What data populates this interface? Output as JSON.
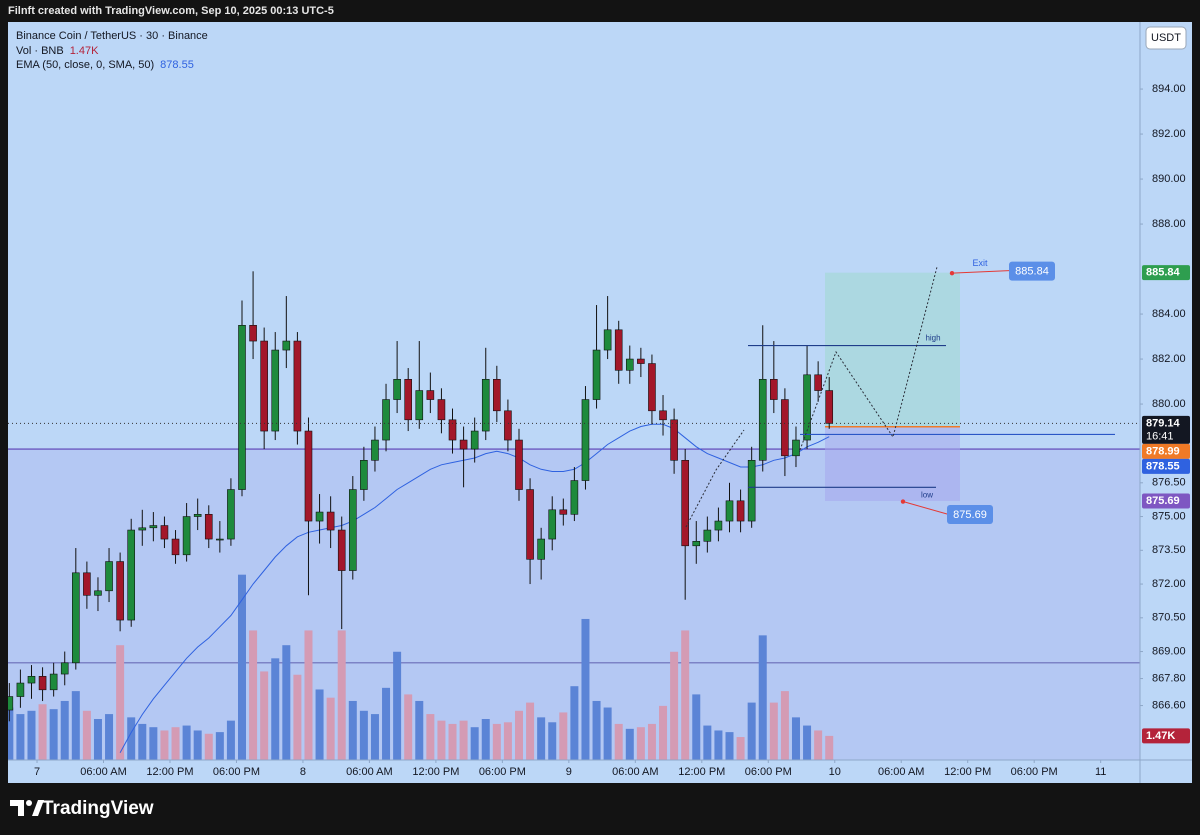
{
  "header_text": "Filnft created with TradingView.com, Sep 10, 2025 00:13 UTC-5",
  "brand": "TradingView",
  "chart_data": {
    "type": "candlestick",
    "symbol": "Binance Coin / TetherUS · 30 · Binance",
    "currency": "USDT",
    "countdown": "16:41",
    "up_color": "#1e8a3c",
    "down_color": "#a3172a",
    "xlim": [
      -2.62,
      99.55
    ],
    "xticks": [
      {
        "value": 0,
        "label": "7"
      },
      {
        "value": 6,
        "label": "06:00 AM"
      },
      {
        "value": 12,
        "label": "12:00 PM"
      },
      {
        "value": 18,
        "label": "06:00 PM"
      },
      {
        "value": 24,
        "label": "8"
      },
      {
        "value": 30,
        "label": "06:00 AM"
      },
      {
        "value": 36,
        "label": "12:00 PM"
      },
      {
        "value": 42,
        "label": "06:00 PM"
      },
      {
        "value": 48,
        "label": "9"
      },
      {
        "value": 54,
        "label": "06:00 AM"
      },
      {
        "value": 60,
        "label": "12:00 PM"
      },
      {
        "value": 66,
        "label": "06:00 PM"
      },
      {
        "value": 72,
        "label": "10"
      },
      {
        "value": 78,
        "label": "06:00 AM"
      },
      {
        "value": 84,
        "label": "12:00 PM"
      },
      {
        "value": 90,
        "label": "06:00 PM"
      },
      {
        "value": 96,
        "label": "11"
      }
    ],
    "ylim": [
      864.18,
      896.98
    ],
    "yticks": [
      {
        "value": 894,
        "label": "894.00"
      },
      {
        "value": 892,
        "label": "892.00"
      },
      {
        "value": 890,
        "label": "890.00"
      },
      {
        "value": 888,
        "label": "888.00"
      },
      {
        "value": 884,
        "label": "884.00"
      },
      {
        "value": 882,
        "label": "882.00"
      },
      {
        "value": 880,
        "label": "880.00"
      },
      {
        "value": 876.5,
        "label": "876.50"
      },
      {
        "value": 875,
        "label": "875.00"
      },
      {
        "value": 873.5,
        "label": "873.50"
      },
      {
        "value": 872,
        "label": "872.00"
      },
      {
        "value": 870.5,
        "label": "870.50"
      },
      {
        "value": 869,
        "label": "869.00"
      },
      {
        "value": 867.8,
        "label": "867.80"
      },
      {
        "value": 866.6,
        "label": "866.60"
      }
    ],
    "grid": false,
    "x": [
      -2.5,
      -1.5,
      -0.5,
      0.5,
      1.5,
      2.5,
      3.5,
      4.5,
      5.5,
      6.5,
      7.5,
      8.5,
      9.5,
      10.5,
      11.5,
      12.5,
      13.5,
      14.5,
      15.5,
      16.5,
      17.5,
      18.5,
      19.5,
      20.5,
      21.5,
      22.5,
      23.5,
      24.5,
      25.5,
      26.5,
      27.5,
      28.5,
      29.5,
      30.5,
      31.5,
      32.5,
      33.5,
      34.5,
      35.5,
      36.5,
      37.5,
      38.5,
      39.5,
      40.5,
      41.5,
      42.5,
      43.5,
      44.5,
      45.5,
      46.5,
      47.5,
      48.5,
      49.5,
      50.5,
      51.5,
      52.5,
      53.5,
      54.5,
      55.5,
      56.5,
      57.5,
      58.5,
      59.5,
      60.5,
      61.5,
      62.5,
      63.5,
      64.5,
      65.5,
      66.5,
      67.5,
      68.5,
      69.5,
      70.5,
      71.5
    ],
    "ohlc": [
      [
        866.4,
        867.6,
        865.9,
        867.0
      ],
      [
        867.0,
        868.2,
        866.5,
        867.6
      ],
      [
        867.6,
        868.4,
        866.9,
        867.9
      ],
      [
        867.9,
        868.3,
        866.8,
        867.3
      ],
      [
        867.3,
        868.5,
        867.0,
        868.0
      ],
      [
        868.0,
        869.0,
        867.5,
        868.5
      ],
      [
        868.5,
        873.6,
        868.2,
        872.5
      ],
      [
        872.5,
        873.0,
        870.9,
        871.5
      ],
      [
        871.5,
        872.3,
        870.8,
        871.7
      ],
      [
        871.7,
        873.6,
        871.2,
        873.0
      ],
      [
        873.0,
        873.4,
        869.9,
        870.4
      ],
      [
        870.4,
        874.9,
        870.1,
        874.4
      ],
      [
        874.4,
        875.3,
        873.7,
        874.5
      ],
      [
        874.5,
        875.2,
        873.9,
        874.6
      ],
      [
        874.6,
        875.0,
        873.6,
        874.0
      ],
      [
        874.0,
        874.4,
        872.9,
        873.3
      ],
      [
        873.3,
        875.6,
        873.0,
        875.0
      ],
      [
        875.0,
        875.8,
        874.4,
        875.1
      ],
      [
        875.1,
        875.5,
        873.6,
        874.0
      ],
      [
        874.0,
        874.8,
        873.4,
        874.0
      ],
      [
        874.0,
        876.7,
        873.7,
        876.2
      ],
      [
        876.2,
        884.6,
        875.9,
        883.5
      ],
      [
        883.5,
        885.9,
        882.0,
        882.8
      ],
      [
        882.8,
        883.4,
        878.0,
        878.8
      ],
      [
        878.8,
        883.2,
        878.4,
        882.4
      ],
      [
        882.4,
        884.8,
        881.6,
        882.8
      ],
      [
        882.8,
        883.2,
        878.2,
        878.8
      ],
      [
        878.8,
        879.4,
        871.5,
        874.8
      ],
      [
        874.8,
        876.0,
        873.8,
        875.2
      ],
      [
        875.2,
        875.9,
        873.6,
        874.4
      ],
      [
        874.4,
        875.0,
        870.0,
        872.6
      ],
      [
        872.6,
        876.8,
        872.2,
        876.2
      ],
      [
        876.2,
        878.1,
        875.7,
        877.5
      ],
      [
        877.5,
        879.0,
        877.0,
        878.4
      ],
      [
        878.4,
        880.9,
        877.9,
        880.2
      ],
      [
        880.2,
        882.8,
        879.6,
        881.1
      ],
      [
        881.1,
        881.6,
        878.8,
        879.3
      ],
      [
        879.3,
        882.8,
        878.9,
        880.6
      ],
      [
        880.6,
        881.4,
        879.6,
        880.2
      ],
      [
        880.2,
        880.7,
        878.7,
        879.3
      ],
      [
        879.3,
        879.8,
        877.8,
        878.4
      ],
      [
        878.4,
        879.0,
        876.3,
        878.0
      ],
      [
        878.0,
        879.4,
        877.4,
        878.8
      ],
      [
        878.8,
        882.5,
        878.4,
        881.1
      ],
      [
        881.1,
        881.7,
        879.2,
        879.7
      ],
      [
        879.7,
        880.2,
        877.9,
        878.4
      ],
      [
        878.4,
        878.9,
        875.7,
        876.2
      ],
      [
        876.2,
        876.7,
        872.0,
        873.1
      ],
      [
        873.1,
        874.5,
        872.2,
        874.0
      ],
      [
        874.0,
        875.9,
        873.5,
        875.3
      ],
      [
        875.3,
        875.8,
        874.6,
        875.1
      ],
      [
        875.1,
        877.2,
        874.8,
        876.6
      ],
      [
        876.6,
        880.8,
        876.2,
        880.2
      ],
      [
        880.2,
        884.4,
        879.8,
        882.4
      ],
      [
        882.4,
        884.8,
        882.0,
        883.3
      ],
      [
        883.3,
        883.7,
        880.9,
        881.5
      ],
      [
        881.5,
        882.6,
        880.9,
        882.0
      ],
      [
        882.0,
        882.5,
        881.2,
        881.8
      ],
      [
        881.8,
        882.2,
        879.1,
        879.7
      ],
      [
        879.7,
        880.4,
        878.6,
        879.3
      ],
      [
        879.3,
        879.8,
        876.9,
        877.5
      ],
      [
        877.5,
        878.0,
        871.3,
        873.7
      ],
      [
        873.7,
        874.8,
        872.9,
        873.9
      ],
      [
        873.9,
        875.0,
        873.4,
        874.4
      ],
      [
        874.4,
        875.4,
        873.9,
        874.8
      ],
      [
        874.8,
        876.5,
        874.3,
        875.7
      ],
      [
        875.7,
        876.2,
        874.3,
        874.8
      ],
      [
        874.8,
        878.1,
        874.5,
        877.5
      ],
      [
        877.5,
        883.5,
        877.0,
        881.1
      ],
      [
        881.1,
        882.8,
        879.6,
        880.2
      ],
      [
        880.2,
        880.7,
        876.8,
        877.7
      ],
      [
        877.7,
        879.0,
        877.2,
        878.4
      ],
      [
        878.4,
        882.6,
        878.0,
        881.3
      ],
      [
        881.3,
        881.9,
        880.1,
        880.6
      ],
      [
        880.6,
        881.2,
        878.9,
        879.14
      ]
    ],
    "volume": {
      "name": "Vol · BNB",
      "ylim": [
        0,
        45000
      ],
      "up_color": "#5b84d6",
      "down_color": "#d49bb4",
      "tag_color": "#b4233a",
      "last_label": "1.47K",
      "values": [
        3200,
        2800,
        3000,
        3400,
        3100,
        3600,
        4200,
        3000,
        2500,
        2800,
        7000,
        2600,
        2200,
        2000,
        1800,
        2000,
        2100,
        1800,
        1600,
        1700,
        2400,
        11300,
        7900,
        5400,
        6200,
        7000,
        5200,
        7900,
        4300,
        3800,
        7900,
        3600,
        3000,
        2800,
        4400,
        6600,
        4000,
        3600,
        2800,
        2400,
        2200,
        2400,
        2000,
        2500,
        2200,
        2300,
        3000,
        3500,
        2600,
        2300,
        2900,
        4500,
        8600,
        3600,
        3200,
        2200,
        1900,
        2000,
        2200,
        3300,
        6600,
        7900,
        4000,
        2100,
        1800,
        1700,
        1400,
        3500,
        7600,
        3500,
        4200,
        2600,
        2100,
        1800,
        1470
      ]
    },
    "ema": {
      "name": "EMA (50, close, 0, SMA, 50)",
      "color": "#2f62e0",
      "values": [
        null,
        null,
        null,
        null,
        null,
        null,
        null,
        null,
        null,
        null,
        864.5,
        865.4,
        866.2,
        866.9,
        867.5,
        868.1,
        868.7,
        869.2,
        869.6,
        870.1,
        870.6,
        871.3,
        872,
        872.6,
        873.2,
        873.7,
        874.1,
        874.3,
        874.4,
        874.5,
        874.6,
        874.8,
        875.1,
        875.4,
        875.8,
        876.2,
        876.5,
        876.8,
        877.1,
        877.3,
        877.4,
        877.5,
        877.6,
        877.8,
        877.9,
        877.8,
        877.6,
        877.3,
        877.1,
        877,
        877,
        877.1,
        877.4,
        877.8,
        878.2,
        878.5,
        878.8,
        879,
        879.1,
        879.1,
        878.9,
        878.5,
        878.1,
        877.8,
        877.6,
        877.4,
        877.2,
        877.2,
        877.3,
        877.5,
        877.6,
        877.8,
        878.1,
        878.3,
        878.55
      ]
    },
    "levels": [
      {
        "value": 878.0,
        "color": "#5a3fb5"
      },
      {
        "value": 868.5,
        "color": "#6a6cb8"
      }
    ],
    "short_line": {
      "value": 878.65,
      "color": "#2a56c6"
    },
    "high_line": {
      "value": 882.6,
      "label": "high",
      "color": "#1f3d8a"
    },
    "low_line": {
      "value": 876.3,
      "label": "low",
      "color": "#1f3d8a"
    },
    "position": {
      "target": 885.84,
      "entry": 878.99,
      "stop": 875.69,
      "target_label": "Exit",
      "profit_color": "#9fd8cf",
      "loss_color": "#a6a8ec",
      "entry_color": "#f07a26",
      "target_color": "#2e9e4f",
      "stop_color": "#7e57c2"
    }
  }
}
